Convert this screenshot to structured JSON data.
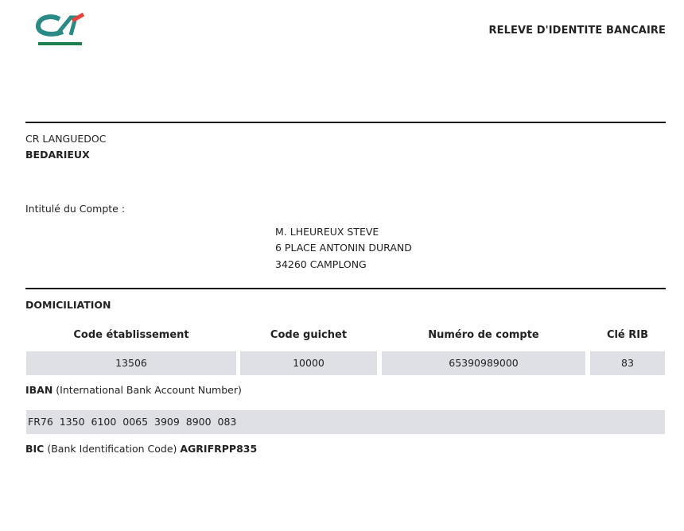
{
  "header": {
    "logo": "CA",
    "title": "RELEVE D'IDENTITE BANCAIRE"
  },
  "bank": {
    "caisse": "CR LANGUEDOC",
    "agence": "BEDARIEUX"
  },
  "account_title_label": "Intitulé du Compte :",
  "holder": {
    "name": "M. LHEUREUX STEVE",
    "address": "6 PLACE ANTONIN DURAND",
    "city": "34260 CAMPLONG"
  },
  "domiciliation_label": "DOMICILIATION",
  "table": {
    "headers": [
      "Code établissement",
      "Code guichet",
      "Numéro de compte",
      "Clé RIB"
    ],
    "values": [
      "13506",
      "10000",
      "65390989000",
      "83"
    ]
  },
  "iban": {
    "label": "IBAN",
    "desc": " (International Bank Account Number)",
    "value": "FR76  1350  6100  0065  3909  8900  083"
  },
  "bic": {
    "label": "BIC",
    "desc": " (Bank Identification Code) ",
    "value": "AGRIFRPP835"
  },
  "colors": {
    "logo_green": "#1e7f6e",
    "logo_red": "#e2433c",
    "cell_bg": "#dfe0e5"
  }
}
